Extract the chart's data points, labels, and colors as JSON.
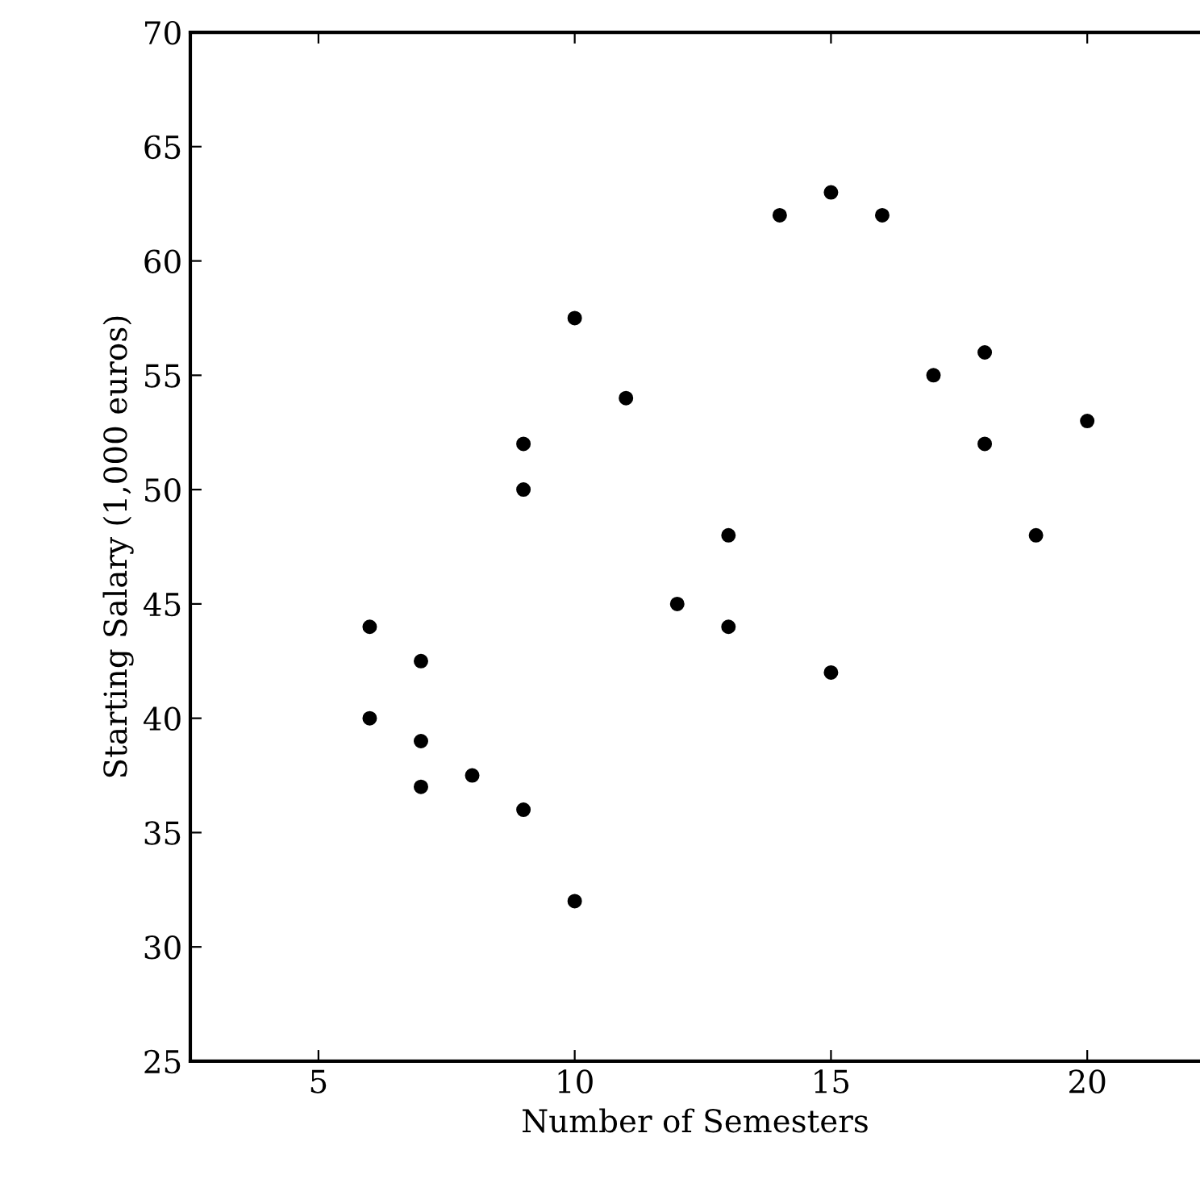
{
  "chart_data": {
    "type": "scatter",
    "xlabel": "Number of Semesters",
    "ylabel": "Starting Salary (1,000 euros)",
    "x": [
      6,
      6,
      7,
      7,
      7,
      8,
      9,
      9,
      9,
      10,
      10,
      11,
      12,
      13,
      13,
      14,
      15,
      15,
      16,
      17,
      18,
      18,
      19,
      20
    ],
    "values": [
      44,
      40,
      42.5,
      39,
      37,
      37.5,
      36,
      52,
      50,
      57.5,
      32,
      54,
      45,
      48,
      44,
      62,
      63,
      42,
      62,
      55,
      56,
      52,
      48,
      53
    ],
    "color": "#000000",
    "marker": "circle",
    "xlim": [
      2.5,
      22.2
    ],
    "xticks": [
      5,
      10,
      15,
      20
    ],
    "ylim": [
      25,
      70
    ],
    "yticks": [
      25,
      30,
      35,
      40,
      45,
      50,
      55,
      60,
      65,
      70
    ],
    "grid": false,
    "legend": false
  }
}
